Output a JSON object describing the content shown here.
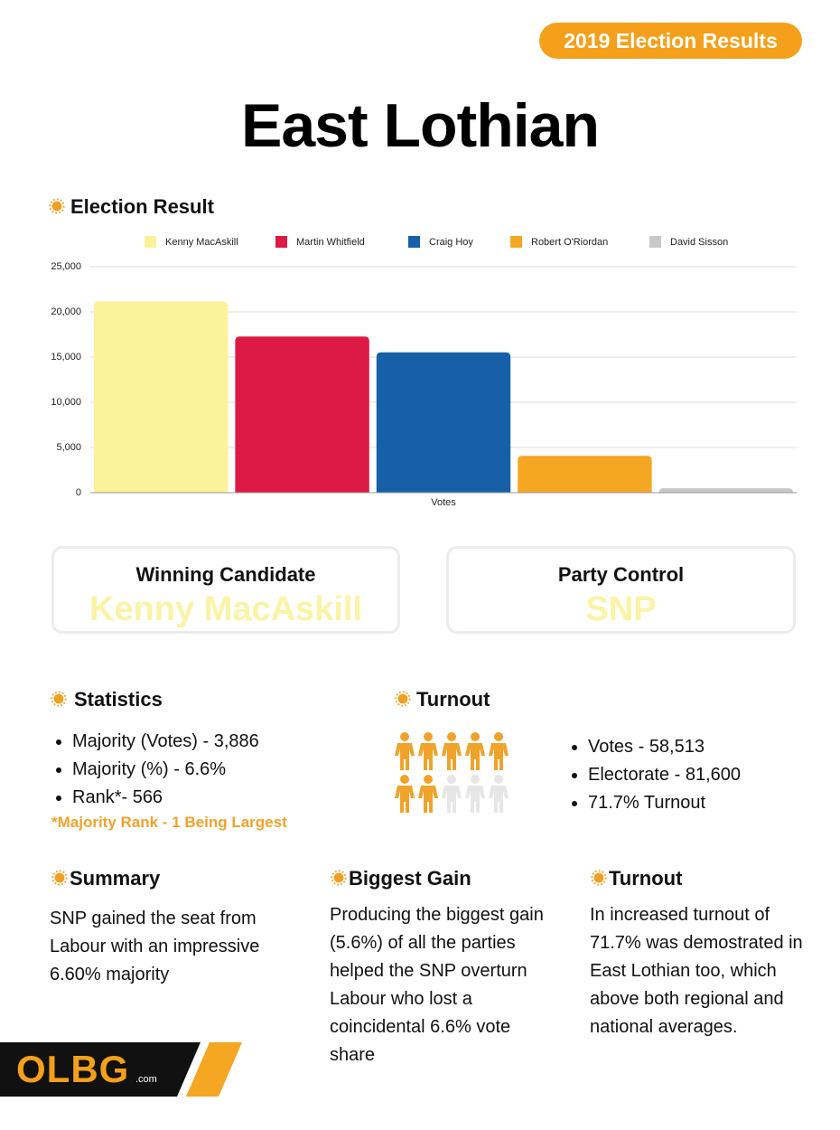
{
  "badge": "2019 Election Results",
  "title": "East Lothian",
  "chart_data": {
    "type": "bar",
    "title": "Election Result",
    "x_label": "Votes",
    "categories": [
      "Votes"
    ],
    "series": [
      {
        "name": "Kenny MacAskill",
        "color": "#fcf29a",
        "values": [
          21156
        ]
      },
      {
        "name": "Martin Whitfield",
        "color": "#dc1a45",
        "values": [
          17270
        ]
      },
      {
        "name": "Craig Hoy",
        "color": "#1760a8",
        "values": [
          15523
        ]
      },
      {
        "name": "Robert O'Riordan",
        "color": "#f5a623",
        "values": [
          4071
        ]
      },
      {
        "name": "David Sisson",
        "color": "#c8c8c8",
        "values": [
          493
        ]
      }
    ],
    "ylim": [
      0,
      25000
    ],
    "yticks": [
      0,
      {
        "value": 5000,
        "label": "5,000"
      },
      {
        "value": 10000,
        "label": "10,000"
      },
      {
        "value": 15000,
        "label": "15,000"
      },
      {
        "value": 20000,
        "label": "20,000"
      },
      {
        "value": 25000,
        "label": "25,000"
      }
    ],
    "grid": true,
    "legend": "top"
  },
  "cards": [
    {
      "label": "Winning Candidate",
      "value": "Kenny MacAskill"
    },
    {
      "label": "Party Control",
      "value": "SNP"
    }
  ],
  "statistics": {
    "heading": "Statistics",
    "items": [
      "Majority (Votes) - 3,886",
      "Majority (%) - 6.6%",
      "Rank*- 566"
    ],
    "note": "*Majority Rank - 1 Being Largest"
  },
  "turnout": {
    "heading": "Turnout",
    "items": [
      "Votes - 58,513",
      "Electorate - 81,600",
      "71.7% Turnout"
    ]
  },
  "sections": [
    {
      "heading": "Summary",
      "lines": [
        "SNP gained the seat from",
        "Labour with an impressive",
        "6.60% majority"
      ]
    },
    {
      "heading": "Biggest Gain",
      "lines": [
        "Producing the biggest gain",
        "(5.6%) of all the parties",
        "helped the SNP overturn",
        "Labour who lost  a",
        "coincidental 6.6% vote",
        "share"
      ]
    },
    {
      "heading": "Turnout",
      "lines": [
        "In increased turnout of",
        "71.7% was demostrated in",
        "East Lothian too, which",
        "above both regional and",
        "national averages."
      ]
    }
  ],
  "logo": {
    "name": "OLBG",
    "suffix": ".com"
  }
}
